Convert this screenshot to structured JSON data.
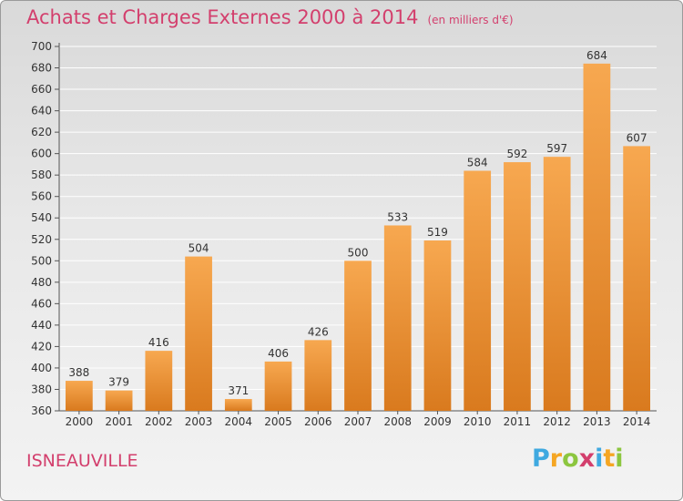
{
  "title": "Achats et Charges Externes 2000 à 2014",
  "subtitle": "(en milliers d'€)",
  "location": "ISNEAUVILLE",
  "brand": {
    "letters": [
      "P",
      "r",
      "o",
      "x",
      "i",
      "t",
      "i"
    ],
    "colors": [
      "#3fa9e0",
      "#f5a623",
      "#8cc63f",
      "#d33f6d",
      "#3fa9e0",
      "#f5a623",
      "#8cc63f"
    ]
  },
  "colors": {
    "bar_top": "#f7a850",
    "bar_bottom": "#d97a1e",
    "title": "#d33f6d",
    "axis": "#333333"
  },
  "chart_data": {
    "type": "bar",
    "categories": [
      "2000",
      "2001",
      "2002",
      "2003",
      "2004",
      "2005",
      "2006",
      "2007",
      "2008",
      "2009",
      "2010",
      "2011",
      "2012",
      "2013",
      "2014"
    ],
    "values": [
      388,
      379,
      416,
      504,
      371,
      406,
      426,
      500,
      533,
      519,
      584,
      592,
      597,
      684,
      607
    ],
    "ylim": [
      360,
      700
    ],
    "yticks": [
      360,
      380,
      400,
      420,
      440,
      460,
      480,
      500,
      520,
      540,
      560,
      580,
      600,
      620,
      640,
      660,
      680,
      700
    ],
    "grid": true,
    "data_labels": true
  }
}
